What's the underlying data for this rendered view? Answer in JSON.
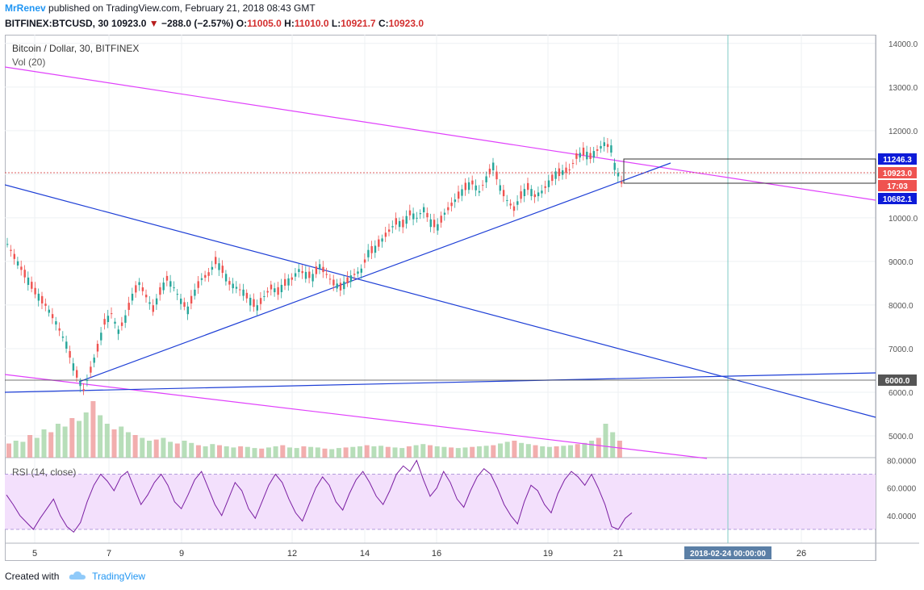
{
  "header": {
    "author": "MrRenev",
    "published_text": "published on TradingView.com, February 21, 2018 08:43 GMT",
    "symbol": "BITFINEX:BTCUSD, 30",
    "last": "10923.0",
    "change": "−288.0 (−2.57%)",
    "o_label": "O:",
    "o_value": "11005.0",
    "h_label": "H:",
    "h_value": "11010.0",
    "l_label": "L:",
    "l_value": "10921.7",
    "c_label": "C:",
    "c_value": "10923.0"
  },
  "chart_title": "Bitcoin / Dollar, 30, BITFINEX",
  "volume_legend": "Vol (20)",
  "rsi_legend": "RSI (14, close)",
  "footer": {
    "created_with": "Created with",
    "brand": "TradingView"
  },
  "colors": {
    "up": "#26a69a",
    "down": "#ef5350",
    "magenta_trend": "#e040fb",
    "blue_trend": "#1e3fd6",
    "rsi_line": "#7b1fa2",
    "rsi_band": "#f3e0fc",
    "price_tag": "#ef5350",
    "blue_tag": "#0d1bd8",
    "vertical_line": "#80cbc4"
  },
  "chart_data": {
    "type": "candlestick",
    "price_axis_ticks": [
      "14000.0",
      "13000.0",
      "12000.0",
      "11000.0",
      "10000.0",
      "9000.0",
      "8000.0",
      "7000.0",
      "6000.0",
      "5000.0"
    ],
    "rsi_axis_ticks": [
      "80.0000",
      "60.0000",
      "40.0000"
    ],
    "time_ticks": [
      "5",
      "7",
      "9",
      "12",
      "14",
      "16",
      "19",
      "21",
      "26"
    ],
    "price_tags": {
      "upper_box": "11246.3",
      "last_price": "10923.0",
      "countdown": "17:03",
      "lower_box": "10682.1",
      "support": "6000.0"
    },
    "cursor_date": "2018-02-24 00:00:00",
    "ylim": [
      4500,
      14200
    ],
    "rsi_ylim": [
      20,
      82
    ],
    "close_path": [
      [
        0,
        9400
      ],
      [
        2,
        9100
      ],
      [
        5,
        8700
      ],
      [
        8,
        8300
      ],
      [
        11,
        8000
      ],
      [
        14,
        7600
      ],
      [
        17,
        7100
      ],
      [
        19,
        6600
      ],
      [
        21,
        6200
      ],
      [
        22,
        6050
      ],
      [
        24,
        6500
      ],
      [
        26,
        7000
      ],
      [
        28,
        7600
      ],
      [
        30,
        7800
      ],
      [
        32,
        7400
      ],
      [
        34,
        7700
      ],
      [
        36,
        8200
      ],
      [
        38,
        8500
      ],
      [
        40,
        8200
      ],
      [
        42,
        7900
      ],
      [
        44,
        8300
      ],
      [
        46,
        8600
      ],
      [
        48,
        8400
      ],
      [
        50,
        8100
      ],
      [
        52,
        7900
      ],
      [
        54,
        8300
      ],
      [
        56,
        8600
      ],
      [
        58,
        8700
      ],
      [
        60,
        9000
      ],
      [
        62,
        8800
      ],
      [
        64,
        8500
      ],
      [
        66,
        8400
      ],
      [
        68,
        8300
      ],
      [
        70,
        8100
      ],
      [
        72,
        7950
      ],
      [
        74,
        8200
      ],
      [
        76,
        8400
      ],
      [
        78,
        8300
      ],
      [
        80,
        8500
      ],
      [
        82,
        8600
      ],
      [
        84,
        8800
      ],
      [
        86,
        8700
      ],
      [
        88,
        8650
      ],
      [
        90,
        8900
      ],
      [
        92,
        8700
      ],
      [
        94,
        8500
      ],
      [
        96,
        8400
      ],
      [
        98,
        8550
      ],
      [
        100,
        8700
      ],
      [
        102,
        8800
      ],
      [
        104,
        9200
      ],
      [
        106,
        9300
      ],
      [
        108,
        9500
      ],
      [
        110,
        9700
      ],
      [
        112,
        9900
      ],
      [
        114,
        9850
      ],
      [
        116,
        10100
      ],
      [
        118,
        10000
      ],
      [
        120,
        10200
      ],
      [
        122,
        9900
      ],
      [
        124,
        9800
      ],
      [
        126,
        10100
      ],
      [
        128,
        10300
      ],
      [
        130,
        10500
      ],
      [
        132,
        10700
      ],
      [
        134,
        10800
      ],
      [
        136,
        10600
      ],
      [
        138,
        10900
      ],
      [
        140,
        11200
      ],
      [
        142,
        10700
      ],
      [
        144,
        10400
      ],
      [
        146,
        10200
      ],
      [
        148,
        10500
      ],
      [
        150,
        10700
      ],
      [
        152,
        10500
      ],
      [
        154,
        10600
      ],
      [
        156,
        10800
      ],
      [
        158,
        11000
      ],
      [
        160,
        11050
      ],
      [
        162,
        11100
      ],
      [
        164,
        11400
      ],
      [
        166,
        11500
      ],
      [
        168,
        11400
      ],
      [
        170,
        11550
      ],
      [
        172,
        11700
      ],
      [
        174,
        11600
      ],
      [
        175,
        11200
      ],
      [
        176,
        11000
      ],
      [
        177,
        10800
      ],
      [
        178,
        10923
      ]
    ],
    "volume": [
      0.25,
      0.3,
      0.28,
      0.4,
      0.35,
      0.5,
      0.45,
      0.6,
      0.55,
      0.7,
      0.65,
      0.8,
      1.0,
      0.75,
      0.6,
      0.5,
      0.55,
      0.45,
      0.4,
      0.35,
      0.3,
      0.32,
      0.35,
      0.28,
      0.25,
      0.3,
      0.26,
      0.22,
      0.2,
      0.24,
      0.22,
      0.2,
      0.18,
      0.2,
      0.19,
      0.17,
      0.16,
      0.18,
      0.2,
      0.22,
      0.18,
      0.17,
      0.2,
      0.19,
      0.18,
      0.16,
      0.15,
      0.17,
      0.18,
      0.19,
      0.2,
      0.22,
      0.2,
      0.21,
      0.19,
      0.18,
      0.17,
      0.2,
      0.22,
      0.24,
      0.22,
      0.2,
      0.19,
      0.18,
      0.17,
      0.18,
      0.19,
      0.2,
      0.21,
      0.22,
      0.25,
      0.28,
      0.3,
      0.26,
      0.24,
      0.22,
      0.2,
      0.19,
      0.2,
      0.21,
      0.22,
      0.24,
      0.26,
      0.3,
      0.35,
      0.6,
      0.45,
      0.3
    ],
    "rsi": [
      55,
      48,
      40,
      35,
      30,
      38,
      45,
      52,
      40,
      32,
      28,
      35,
      50,
      62,
      70,
      65,
      58,
      68,
      72,
      60,
      48,
      55,
      64,
      70,
      62,
      50,
      45,
      55,
      66,
      72,
      60,
      48,
      40,
      52,
      64,
      58,
      45,
      38,
      50,
      62,
      70,
      64,
      52,
      42,
      36,
      48,
      60,
      68,
      62,
      50,
      44,
      56,
      66,
      72,
      64,
      54,
      48,
      58,
      70,
      76,
      72,
      80,
      66,
      54,
      60,
      72,
      64,
      52,
      46,
      58,
      68,
      74,
      70,
      60,
      48,
      40,
      34,
      50,
      62,
      58,
      48,
      42,
      56,
      66,
      72,
      68,
      62,
      70,
      60,
      48,
      32,
      30,
      38,
      42
    ]
  }
}
